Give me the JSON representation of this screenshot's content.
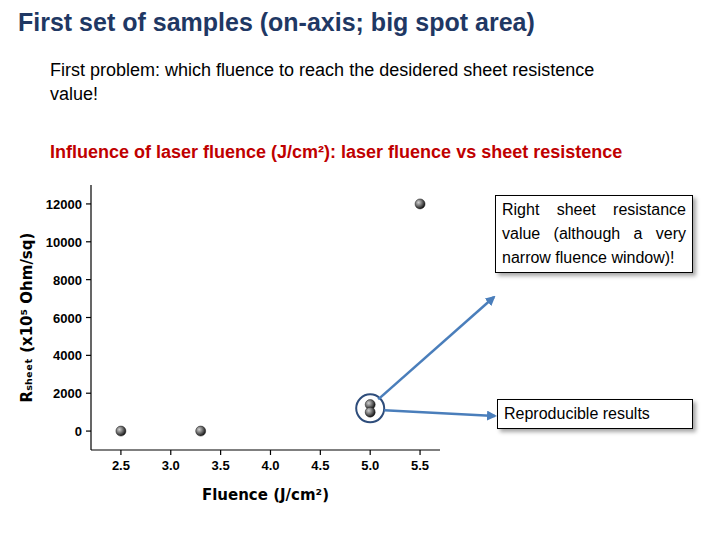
{
  "slide": {
    "title": "First set of samples (on-axis; big spot area)",
    "text": "First problem: which fluence to reach the desidered sheet resistence value!",
    "heading": "Influence of laser fluence (J/cm²): laser fluence vs sheet resistence"
  },
  "chart_data": {
    "type": "scatter",
    "x_label": "Fluence (J/cm²)",
    "y_label": "Rₛₕₑₑₜ (x10⁵ Ohm/sq)",
    "x": [
      2.5,
      3.3,
      5.0,
      5.0,
      5.5
    ],
    "values": [
      0,
      0,
      1400,
      1000,
      12000
    ],
    "color": "#1a1a1a",
    "marker": "circle",
    "xlim": [
      2.2,
      5.7
    ],
    "xticks": [
      2.5,
      {
        "value": 3,
        "label": "3.0"
      },
      3.5,
      {
        "value": 4,
        "label": "4.0"
      },
      4.5,
      {
        "value": 5,
        "label": "5.0"
      },
      5.5
    ],
    "ylim": [
      -1000,
      13000
    ],
    "yticks": [
      0,
      2000,
      4000,
      6000,
      8000,
      10000,
      12000
    ],
    "grid": false,
    "annotations": [
      "Right sheet resistance value (although a very narrow fluence window)!",
      "Reproducible results"
    ]
  }
}
